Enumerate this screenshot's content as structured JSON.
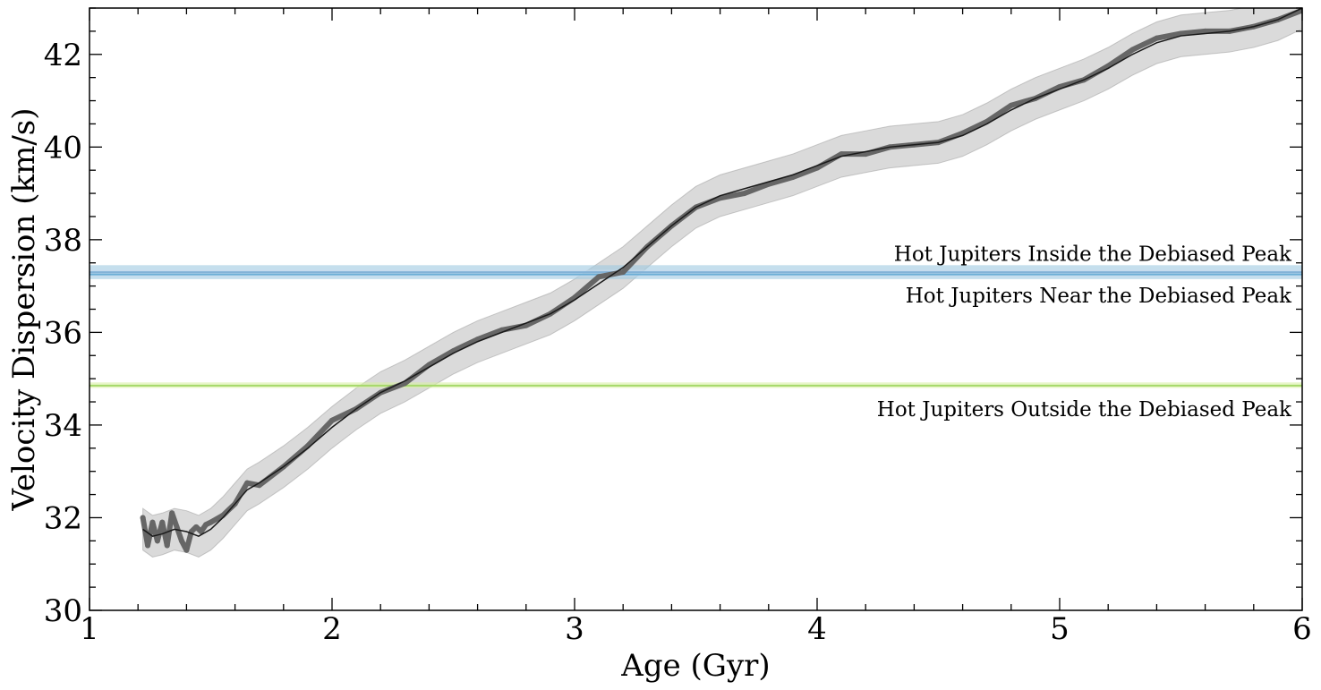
{
  "chart_data": {
    "type": "line",
    "xlabel": "Age (Gyr)",
    "ylabel": "Velocity Dispersion (km/s)",
    "xlim": [
      1,
      6
    ],
    "ylim": [
      30,
      43
    ],
    "xticks": [
      1,
      2,
      3,
      4,
      5,
      6
    ],
    "yticks": [
      30,
      32,
      34,
      36,
      38,
      40,
      42
    ],
    "x_minor_step": 0.2,
    "y_minor_step": 0.5,
    "grid": false,
    "colors": {
      "points": "#666666",
      "fit_line": "#1a1a1a",
      "band": "#bbbbbb",
      "inside_peak": "#1f77b4",
      "near_peak": "#6baed6",
      "outside_peak": "#b5e08a"
    },
    "series": [
      {
        "kind": "fit",
        "band_halfwidth": 0.45,
        "x": [
          1.22,
          1.26,
          1.3,
          1.35,
          1.4,
          1.45,
          1.5,
          1.55,
          1.6,
          1.65,
          1.7,
          1.8,
          1.9,
          2.0,
          2.1,
          2.2,
          2.3,
          2.4,
          2.5,
          2.6,
          2.7,
          2.8,
          2.9,
          3.0,
          3.1,
          3.2,
          3.3,
          3.4,
          3.5,
          3.6,
          3.7,
          3.8,
          3.9,
          4.0,
          4.1,
          4.2,
          4.3,
          4.4,
          4.5,
          4.6,
          4.7,
          4.8,
          4.9,
          5.0,
          5.1,
          5.2,
          5.3,
          5.4,
          5.5,
          5.6,
          5.7,
          5.8,
          5.9,
          6.0
        ],
        "y": [
          31.75,
          31.6,
          31.65,
          31.75,
          31.7,
          31.6,
          31.75,
          32.0,
          32.3,
          32.6,
          32.75,
          33.1,
          33.5,
          33.95,
          34.35,
          34.7,
          34.95,
          35.25,
          35.55,
          35.8,
          36.0,
          36.2,
          36.4,
          36.7,
          37.05,
          37.4,
          37.85,
          38.3,
          38.7,
          38.95,
          39.1,
          39.25,
          39.4,
          39.6,
          39.8,
          39.9,
          40.0,
          40.05,
          40.1,
          40.25,
          40.5,
          40.8,
          41.05,
          41.25,
          41.45,
          41.7,
          42.0,
          42.25,
          42.4,
          42.45,
          42.5,
          42.6,
          42.75,
          43.0
        ]
      },
      {
        "kind": "points",
        "x": [
          1.22,
          1.24,
          1.26,
          1.28,
          1.3,
          1.32,
          1.34,
          1.36,
          1.38,
          1.4,
          1.42,
          1.44,
          1.46,
          1.48,
          1.5,
          1.55,
          1.6,
          1.65,
          1.7,
          1.8,
          1.9,
          2.0,
          2.1,
          2.2,
          2.3,
          2.4,
          2.5,
          2.6,
          2.7,
          2.8,
          2.9,
          3.0,
          3.1,
          3.2,
          3.3,
          3.4,
          3.5,
          3.6,
          3.7,
          3.8,
          3.9,
          4.0,
          4.1,
          4.2,
          4.3,
          4.4,
          4.5,
          4.6,
          4.7,
          4.8,
          4.9,
          5.0,
          5.1,
          5.2,
          5.3,
          5.4,
          5.5,
          5.6,
          5.7,
          5.8,
          5.9,
          6.0
        ],
        "y": [
          32.0,
          31.4,
          31.9,
          31.5,
          31.9,
          31.4,
          32.1,
          31.8,
          31.5,
          31.3,
          31.7,
          31.8,
          31.7,
          31.85,
          31.9,
          32.05,
          32.3,
          32.75,
          32.7,
          33.1,
          33.55,
          34.1,
          34.35,
          34.7,
          34.9,
          35.3,
          35.6,
          35.85,
          36.05,
          36.15,
          36.4,
          36.75,
          37.2,
          37.3,
          37.85,
          38.3,
          38.7,
          38.9,
          39.0,
          39.2,
          39.35,
          39.55,
          39.85,
          39.85,
          40.0,
          40.05,
          40.1,
          40.3,
          40.55,
          40.9,
          41.05,
          41.3,
          41.45,
          41.75,
          42.1,
          42.35,
          42.45,
          42.5,
          42.5,
          42.6,
          42.75,
          42.95
        ]
      }
    ],
    "hlines": [
      {
        "label": "Hot Jupiters Inside the Debiased Peak",
        "y": 37.3,
        "band": [
          37.15,
          37.45
        ],
        "color": "#1f77b4",
        "band_color": "#9ecae1",
        "text_y": 37.7
      },
      {
        "label": "Hot Jupiters Near the Debiased Peak",
        "y": 37.25,
        "band": [
          37.2,
          37.35
        ],
        "color": "#6baed6",
        "band_color": "#c6dbef",
        "text_y": 36.8
      },
      {
        "label": "Hot Jupiters Outside the Debiased Peak",
        "y": 34.85,
        "band": [
          34.8,
          34.92
        ],
        "color": "#a6d96a",
        "band_color": "#d9f0a3",
        "text_y": 34.35
      }
    ]
  }
}
